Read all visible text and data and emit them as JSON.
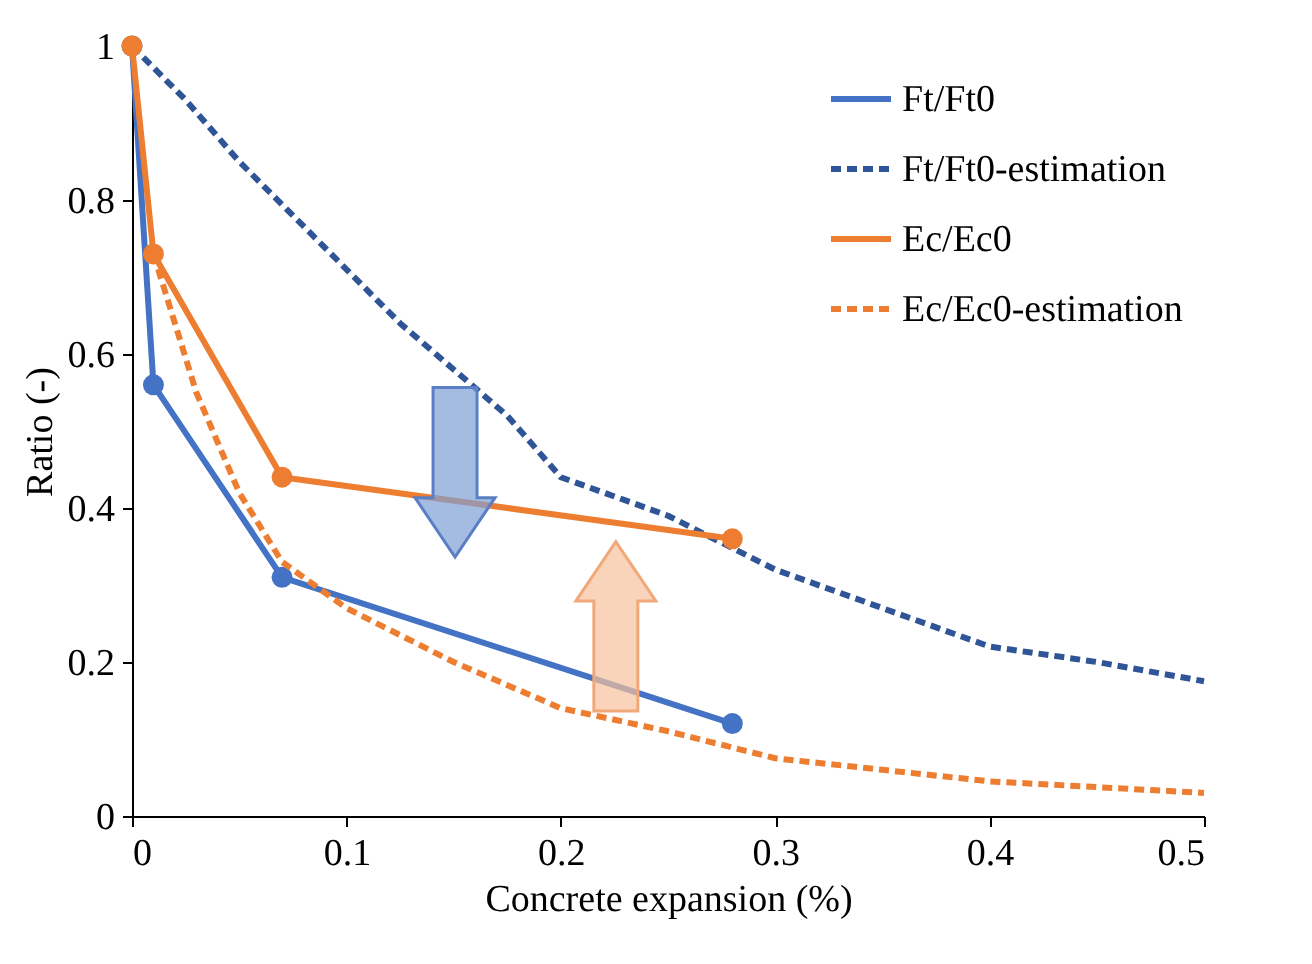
{
  "chart_data": {
    "type": "line",
    "xlabel": "Concrete expansion (%)",
    "ylabel": "Ratio (-)",
    "xlim": [
      0,
      0.5
    ],
    "ylim": [
      0,
      1
    ],
    "xticks": [
      {
        "value": 0,
        "label": "0"
      },
      {
        "value": 0.1,
        "label": "0.1"
      },
      {
        "value": 0.2,
        "label": "0.2"
      },
      {
        "value": 0.3,
        "label": "0.3"
      },
      {
        "value": 0.4,
        "label": "0.4"
      },
      {
        "value": 0.5,
        "label": "0.5"
      }
    ],
    "yticks": [
      {
        "value": 0,
        "label": "0"
      },
      {
        "value": 0.2,
        "label": "0.2"
      },
      {
        "value": 0.4,
        "label": "0.4"
      },
      {
        "value": 0.6,
        "label": "0.6"
      },
      {
        "value": 0.8,
        "label": "0.8"
      },
      {
        "value": 1,
        "label": "1"
      }
    ],
    "legend": "top right",
    "series": [
      {
        "name": "Ft/Ft0",
        "color": "#4472c4",
        "marker": "circle",
        "line_style": "solid",
        "x": [
          0,
          0.01,
          0.07,
          0.28
        ],
        "values": [
          1,
          0.56,
          0.31,
          0.12
        ]
      },
      {
        "name": "Ft/Ft0-estimation",
        "color": "#2f5597",
        "marker": "none",
        "line_style": "dashed",
        "x": [
          0,
          0.025,
          0.05,
          0.075,
          0.1,
          0.125,
          0.15,
          0.175,
          0.2,
          0.25,
          0.3,
          0.35,
          0.4,
          0.45,
          0.5
        ],
        "values": [
          1,
          0.93,
          0.85,
          0.78,
          0.71,
          0.64,
          0.58,
          0.52,
          0.44,
          0.39,
          0.32,
          0.27,
          0.22,
          0.2,
          0.175
        ]
      },
      {
        "name": "Ec/Ec0",
        "color": "#ed7d31",
        "marker": "circle",
        "line_style": "solid",
        "x": [
          0,
          0.01,
          0.07,
          0.28
        ],
        "values": [
          1,
          0.73,
          0.44,
          0.36
        ]
      },
      {
        "name": "Ec/Ec0-estimation",
        "color": "#ed7d31",
        "marker": "none",
        "line_style": "dashed",
        "x": [
          0.01,
          0.03,
          0.05,
          0.07,
          0.1,
          0.15,
          0.2,
          0.25,
          0.3,
          0.35,
          0.4,
          0.5
        ],
        "values": [
          0.73,
          0.55,
          0.42,
          0.33,
          0.27,
          0.2,
          0.14,
          0.11,
          0.075,
          0.06,
          0.045,
          0.03
        ]
      }
    ]
  }
}
